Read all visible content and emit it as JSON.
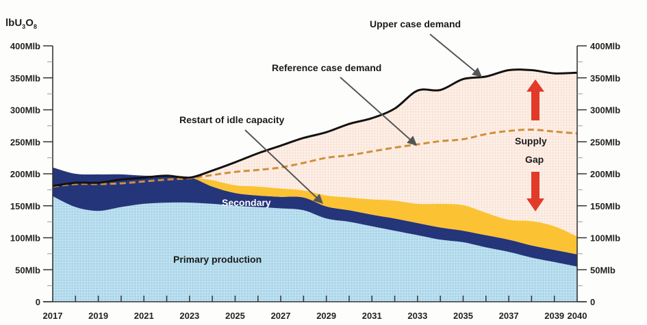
{
  "chart_data": {
    "type": "area",
    "title": "",
    "ylabel": "lbU3O8",
    "ylabel_parts": {
      "main": "lbU",
      "sub1": "3",
      "mid": "O",
      "sub2": "8"
    },
    "xlabel": "",
    "xlim": [
      2017,
      2040
    ],
    "ylim": [
      0,
      400
    ],
    "x_tick_labels": [
      "2017",
      "2019",
      "2021",
      "2023",
      "2025",
      "2027",
      "2029",
      "2031",
      "2033",
      "2035",
      "2037",
      "2039",
      "2040"
    ],
    "x_tick_values": [
      2017,
      2019,
      2021,
      2023,
      2025,
      2027,
      2029,
      2031,
      2033,
      2035,
      2037,
      2039,
      2040
    ],
    "y_tick_labels": [
      "0",
      "50Mlb",
      "100Mlb",
      "150Mlb",
      "200Mlb",
      "250Mlb",
      "300Mlb",
      "350Mlb",
      "400Mlb"
    ],
    "y_tick_values": [
      0,
      50,
      100,
      150,
      200,
      250,
      300,
      350,
      400
    ],
    "x": [
      2017,
      2018,
      2019,
      2020,
      2021,
      2022,
      2023,
      2024,
      2025,
      2026,
      2027,
      2028,
      2029,
      2030,
      2031,
      2032,
      2033,
      2034,
      2035,
      2036,
      2037,
      2038,
      2039,
      2040
    ],
    "series": [
      {
        "name": "Primary production",
        "kind": "stacked-area",
        "values": [
          165,
          148,
          142,
          148,
          153,
          155,
          155,
          153,
          150,
          148,
          146,
          143,
          130,
          125,
          118,
          111,
          104,
          97,
          93,
          85,
          78,
          69,
          62,
          55
        ]
      },
      {
        "name": "Secondary",
        "kind": "stacked-area",
        "values": [
          45,
          52,
          57,
          51,
          44,
          42,
          40,
          27,
          20,
          18,
          18,
          20,
          19,
          18,
          18,
          19,
          19,
          19,
          18,
          19,
          19,
          19,
          19,
          19
        ]
      },
      {
        "name": "Restart of idle capacity",
        "kind": "stacked-area",
        "values": [
          0,
          0,
          0,
          0,
          0,
          0,
          0,
          10,
          12,
          14,
          13,
          11,
          17,
          20,
          24,
          28,
          30,
          37,
          40,
          35,
          31,
          38,
          37,
          28
        ]
      },
      {
        "name": "Reference case demand",
        "kind": "dashed-line",
        "values": [
          180,
          184,
          184,
          185,
          188,
          191,
          193,
          198,
          203,
          206,
          210,
          217,
          225,
          229,
          235,
          241,
          246,
          251,
          254,
          262,
          267,
          269,
          266,
          263
        ]
      },
      {
        "name": "Upper case demand",
        "kind": "line",
        "values": [
          181,
          186,
          186,
          191,
          194,
          197,
          194,
          205,
          218,
          232,
          244,
          256,
          265,
          278,
          287,
          302,
          330,
          331,
          348,
          352,
          362,
          362,
          357,
          358
        ]
      }
    ],
    "annotations": [
      {
        "text": "Upper case demand",
        "points_to": "Upper case demand"
      },
      {
        "text": "Reference case demand",
        "points_to": "Reference case demand"
      },
      {
        "text": "Restart of idle capacity",
        "points_to": "Restart of idle capacity"
      },
      {
        "text": "Secondary",
        "on": "Secondary"
      },
      {
        "text": "Primary production",
        "on": "Primary production"
      },
      {
        "text_line1": "Supply",
        "text_line2": "Gap",
        "indicator": "double red arrow"
      }
    ],
    "right_axis": {
      "tick_labels": [
        "0",
        "50Mlb",
        "100Mlb",
        "150Mlb",
        "200Mlb",
        "250Mlb",
        "300Mlb",
        "350Mlb",
        "400Mlb"
      ]
    },
    "grid": false,
    "legend": "none"
  },
  "colors": {
    "primary": "#a9d6ea",
    "secondary": "#24357a",
    "restart": "#fbc234",
    "gap_fill": "#fbe9de",
    "upper_line": "#111111",
    "reference_line": "#d08f3c",
    "arrow": "#e23a2a",
    "axis": "#333333",
    "pointer": "#555555"
  }
}
